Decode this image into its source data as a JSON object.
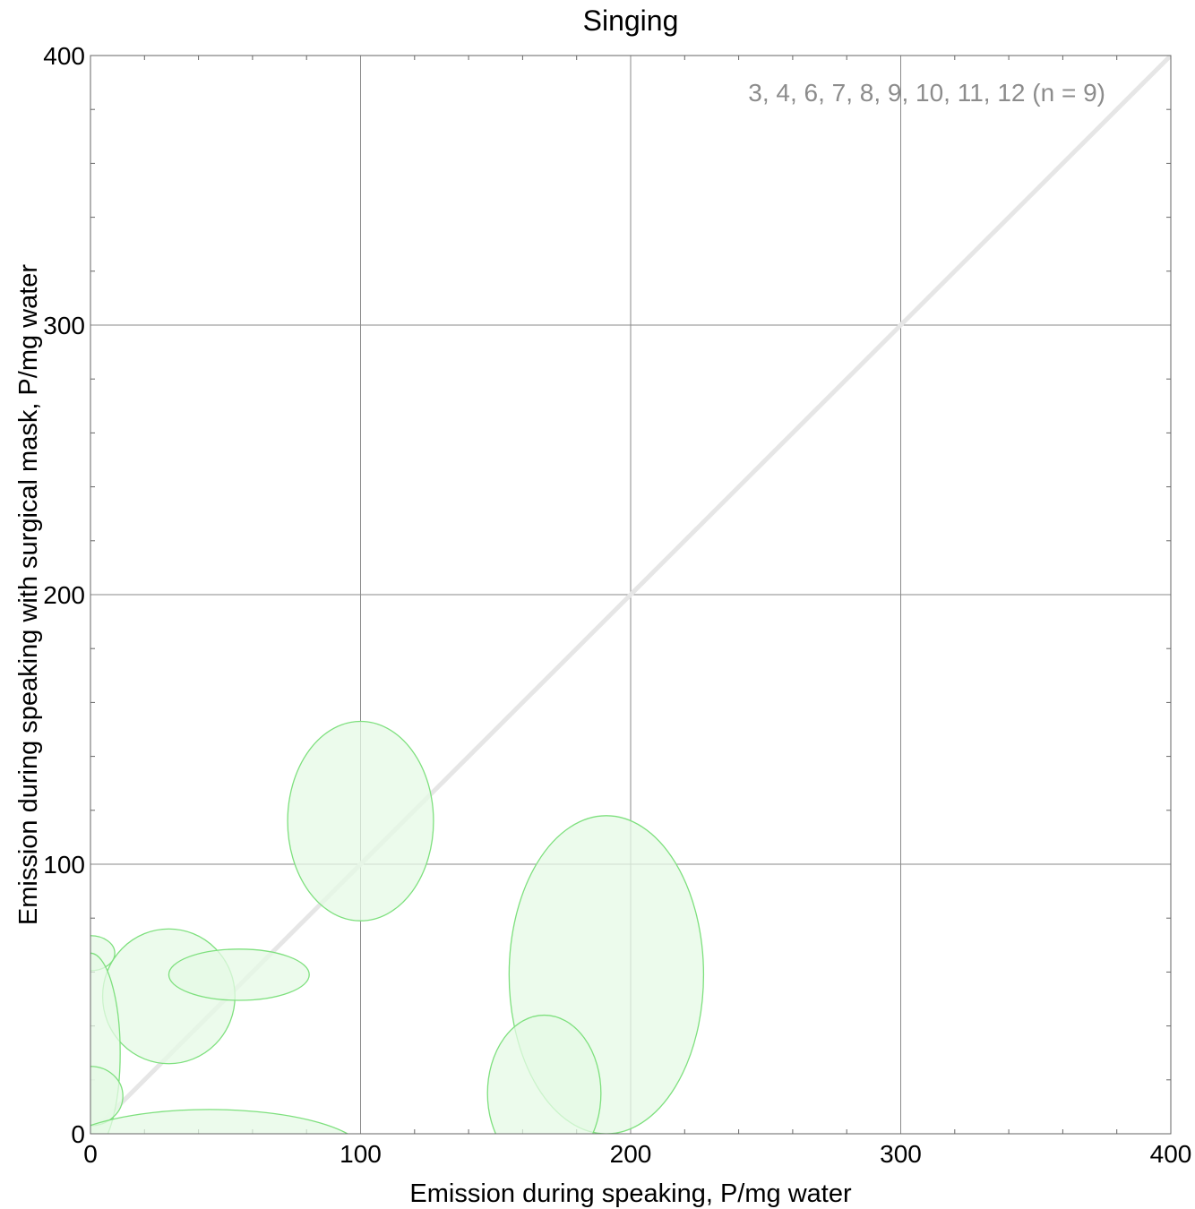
{
  "chart_data": {
    "type": "scatter",
    "title": "Singing",
    "xlabel": "Emission during speaking,   P/mg water",
    "ylabel": "Emission during speaking with surgical mask,   P/mg water",
    "annotation": "3, 4, 6, 7, 8, 9, 10, 11, 12  (n = 9)",
    "xlim": [
      0,
      400
    ],
    "ylim": [
      0,
      400
    ],
    "x_ticks": [
      0,
      100,
      200,
      300,
      400
    ],
    "y_ticks": [
      0,
      100,
      200,
      300,
      400
    ],
    "x_tick_labels": [
      "0",
      "100",
      "200",
      "300",
      "400"
    ],
    "y_tick_labels": [
      "0",
      "100",
      "200",
      "300",
      "400"
    ],
    "grid": true,
    "reference_line": {
      "from": [
        0,
        0
      ],
      "to": [
        400,
        400
      ],
      "color": "#e6e6e6"
    },
    "ellipse_fill": "#e6f9e6",
    "ellipse_stroke": "#7ee07e",
    "ellipses": [
      {
        "cx": 100,
        "cy": 116,
        "rx": 27,
        "ry": 37
      },
      {
        "cx": 191,
        "cy": 59,
        "rx": 36,
        "ry": 59
      },
      {
        "cx": 168,
        "cy": 15,
        "rx": 21,
        "ry": 29
      },
      {
        "cx": 29,
        "cy": 51,
        "rx": 24.5,
        "ry": 25
      },
      {
        "cx": 55,
        "cy": 59,
        "rx": 26,
        "ry": 9.5
      },
      {
        "cx": 0,
        "cy": 67,
        "rx": 9,
        "ry": 6.5
      },
      {
        "cx": 0,
        "cy": 30,
        "rx": 11,
        "ry": 37
      },
      {
        "cx": 0,
        "cy": 14,
        "rx": 12,
        "ry": 11
      },
      {
        "cx": 44,
        "cy": -8,
        "rx": 58,
        "ry": 17
      }
    ]
  }
}
